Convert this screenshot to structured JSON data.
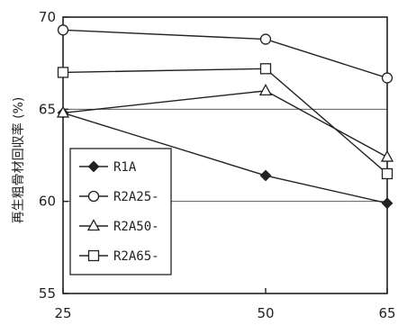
{
  "chart_data": {
    "type": "line",
    "x": [
      25,
      50,
      65
    ],
    "x_tick_labels": [
      "25",
      "50",
      "65"
    ],
    "ylim": [
      55,
      70
    ],
    "y_ticks": [
      55,
      60,
      65,
      70
    ],
    "y_tick_labels": [
      "55",
      "60",
      "65",
      "70"
    ],
    "ylabel": "再生粗骨材回収率 (%)",
    "xlabel": "",
    "title": "",
    "grid": "horizontal",
    "legend_position": "bottom-left",
    "series": [
      {
        "name": "R1A",
        "marker": "diamond-filled",
        "values": [
          64.8,
          61.4,
          59.9
        ]
      },
      {
        "name": "R2A25-",
        "marker": "circle-open",
        "values": [
          69.3,
          68.8,
          66.7
        ]
      },
      {
        "name": "R2A50-",
        "marker": "triangle-open",
        "values": [
          64.8,
          66.0,
          62.4
        ]
      },
      {
        "name": "R2A65-",
        "marker": "square-open",
        "values": [
          67.0,
          67.2,
          61.5
        ]
      }
    ]
  }
}
